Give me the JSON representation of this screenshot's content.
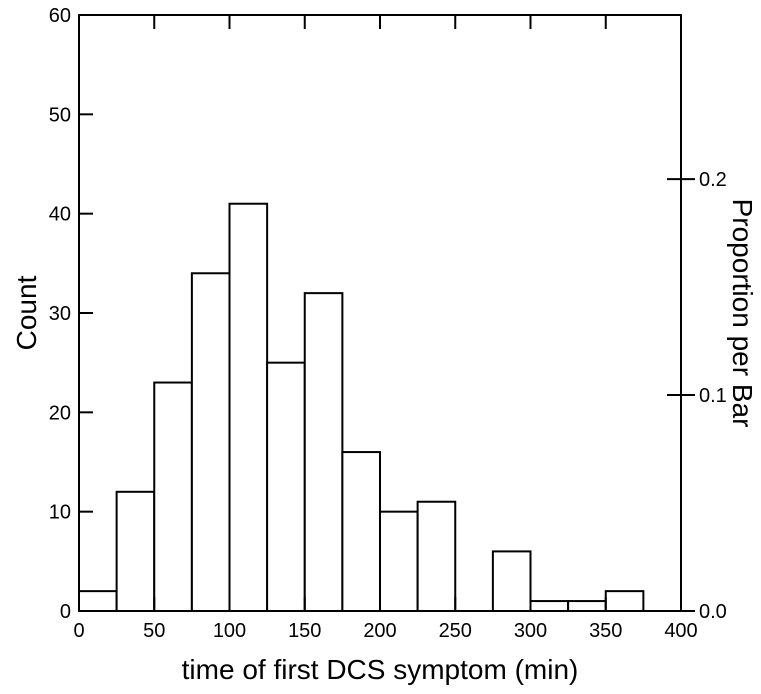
{
  "chart_data": {
    "type": "bar",
    "bin_width": 25,
    "bins": [
      {
        "x0": 0,
        "x1": 25,
        "count": 2
      },
      {
        "x0": 25,
        "x1": 50,
        "count": 12
      },
      {
        "x0": 50,
        "x1": 75,
        "count": 23
      },
      {
        "x0": 75,
        "x1": 100,
        "count": 34
      },
      {
        "x0": 100,
        "x1": 125,
        "count": 41
      },
      {
        "x0": 125,
        "x1": 150,
        "count": 25
      },
      {
        "x0": 150,
        "x1": 175,
        "count": 32
      },
      {
        "x0": 175,
        "x1": 200,
        "count": 16
      },
      {
        "x0": 200,
        "x1": 225,
        "count": 10
      },
      {
        "x0": 225,
        "x1": 250,
        "count": 11
      },
      {
        "x0": 250,
        "x1": 275,
        "count": 0
      },
      {
        "x0": 275,
        "x1": 300,
        "count": 6
      },
      {
        "x0": 300,
        "x1": 325,
        "count": 1
      },
      {
        "x0": 325,
        "x1": 350,
        "count": 1
      },
      {
        "x0": 350,
        "x1": 375,
        "count": 2
      },
      {
        "x0": 375,
        "x1": 400,
        "count": 0
      }
    ],
    "xlabel": "time of first DCS symptom (min)",
    "ylabel": "Count",
    "y2label": "Proportion per Bar",
    "xlim": [
      0,
      400
    ],
    "ylim": [
      0,
      60
    ],
    "y2lim": [
      0.0,
      0.276
    ],
    "xticks": [
      0,
      50,
      100,
      150,
      200,
      250,
      300,
      350,
      400
    ],
    "yticks": [
      0,
      10,
      20,
      30,
      40,
      50,
      60
    ],
    "y2ticks": [
      0.0,
      0.1,
      0.2
    ],
    "y2tick_labels": [
      "0.0",
      "0.1",
      "0.2"
    ],
    "grid": false
  }
}
